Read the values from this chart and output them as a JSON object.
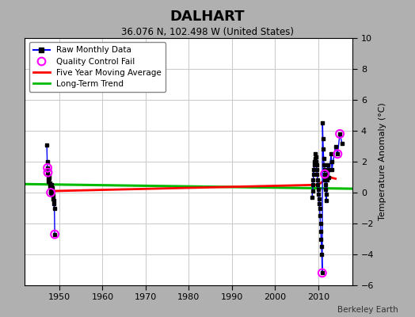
{
  "title": "DALHART",
  "subtitle": "36.076 N, 102.498 W (United States)",
  "ylabel": "Temperature Anomaly (°C)",
  "credit": "Berkeley Earth",
  "xlim": [
    1942,
    2018
  ],
  "ylim": [
    -6,
    10
  ],
  "yticks": [
    -6,
    -4,
    -2,
    0,
    2,
    4,
    6,
    8,
    10
  ],
  "xticks": [
    1950,
    1960,
    1970,
    1980,
    1990,
    2000,
    2010
  ],
  "fig_bg_color": "#b0b0b0",
  "plot_bg_color": "#ffffff",
  "grid_color": "#cccccc",
  "raw_color": "#0000ff",
  "marker_color": "#000000",
  "qc_color": "#ff00ff",
  "ma_color": "#ff0000",
  "trend_color": "#00bb00",
  "early_data": {
    "x": [
      1947.083,
      1947.167,
      1947.25,
      1947.333,
      1947.417,
      1947.5,
      1947.583,
      1947.667,
      1947.75,
      1947.833,
      1947.917,
      1948.0,
      1948.083,
      1948.167,
      1948.25,
      1948.333,
      1948.417,
      1948.5,
      1948.583,
      1948.667,
      1948.75,
      1948.833,
      1948.917
    ],
    "y": [
      3.1,
      2.0,
      1.6,
      1.3,
      0.9,
      0.7,
      0.9,
      1.1,
      0.6,
      0.4,
      0.1,
      0.0,
      -0.1,
      0.2,
      0.5,
      0.3,
      0.0,
      -0.2,
      -0.4,
      -0.5,
      -0.7,
      -1.0,
      -2.7
    ]
  },
  "early_qc": {
    "x": [
      1947.25,
      1947.333,
      1948.0,
      1948.917
    ],
    "y": [
      1.6,
      1.3,
      0.0,
      -2.7
    ]
  },
  "late_data": {
    "x": [
      2008.583,
      2008.667,
      2008.75,
      2008.833,
      2008.917,
      2009.0,
      2009.083,
      2009.167,
      2009.25,
      2009.333,
      2009.417,
      2009.5,
      2009.583,
      2009.667,
      2009.75,
      2009.833,
      2009.917,
      2010.0,
      2010.083,
      2010.167,
      2010.25,
      2010.333,
      2010.417,
      2010.5,
      2010.583,
      2010.667,
      2010.75,
      2010.833,
      2010.917,
      2011.0,
      2011.083,
      2011.167,
      2011.25,
      2011.333,
      2011.417,
      2011.5,
      2011.583,
      2011.667,
      2011.75,
      2011.833,
      2011.917,
      2012.0,
      2012.083,
      2012.167,
      2012.25,
      2012.333,
      2012.417,
      2013.0,
      2013.083,
      2013.167,
      2014.0,
      2014.5,
      2015.0,
      2015.5
    ],
    "y": [
      -0.3,
      0.1,
      0.5,
      0.8,
      1.2,
      1.5,
      1.8,
      2.0,
      2.2,
      2.5,
      2.3,
      2.0,
      1.8,
      1.5,
      1.2,
      0.8,
      0.5,
      0.2,
      -0.1,
      -0.4,
      -0.7,
      -1.0,
      -1.5,
      -2.0,
      -2.5,
      -3.0,
      -3.5,
      -4.0,
      -5.2,
      4.5,
      3.5,
      2.8,
      2.2,
      1.8,
      1.5,
      1.2,
      0.8,
      0.5,
      0.2,
      -0.1,
      -0.5,
      0.8,
      1.2,
      1.5,
      1.8,
      1.5,
      1.0,
      2.5,
      2.0,
      1.5,
      3.0,
      2.5,
      3.8,
      3.2
    ]
  },
  "late_qc": {
    "x": [
      2010.917,
      2011.5,
      2014.5,
      2015.0
    ],
    "y": [
      -5.2,
      1.2,
      2.5,
      3.8
    ]
  },
  "ma_x": [
    1947.5,
    1948.5,
    2009.5,
    2010.5,
    2011.5,
    2012.5,
    2014.0
  ],
  "ma_y": [
    0.7,
    0.1,
    0.5,
    0.6,
    0.8,
    1.0,
    0.9
  ],
  "trend_x": [
    1942,
    2018
  ],
  "trend_y": [
    0.55,
    0.25
  ]
}
